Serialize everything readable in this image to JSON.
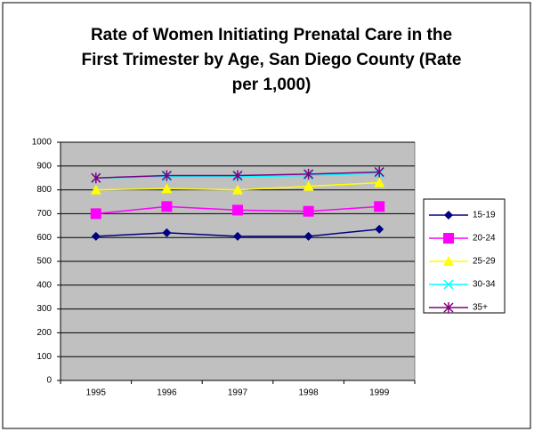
{
  "chart_data": {
    "type": "line",
    "title": "Rate of Women Initiating Prenatal Care in the First Trimester by Age, San Diego County (Rate per 1,000)",
    "categories": [
      "1995",
      "1996",
      "1997",
      "1998",
      "1999"
    ],
    "series": [
      {
        "name": "15-19",
        "color": "#000080",
        "marker": "diamond",
        "values": [
          605,
          620,
          605,
          605,
          635
        ]
      },
      {
        "name": "20-24",
        "color": "#ff00ff",
        "marker": "square",
        "values": [
          700,
          730,
          715,
          710,
          730
        ]
      },
      {
        "name": "25-29",
        "color": "#ffff00",
        "marker": "triangle",
        "values": [
          800,
          805,
          800,
          815,
          830
        ]
      },
      {
        "name": "30-34",
        "color": "#00ffff",
        "marker": "x",
        "values": [
          850,
          855,
          855,
          860,
          870
        ]
      },
      {
        "name": "35+",
        "color": "#800080",
        "marker": "asterisk",
        "values": [
          850,
          860,
          860,
          866,
          875
        ]
      }
    ],
    "ylim": [
      0,
      1000
    ],
    "yticks": [
      0,
      100,
      200,
      300,
      400,
      500,
      600,
      700,
      800,
      900,
      1000
    ],
    "grid": true,
    "legend": "right",
    "plot_background": "#c0c0c0"
  }
}
